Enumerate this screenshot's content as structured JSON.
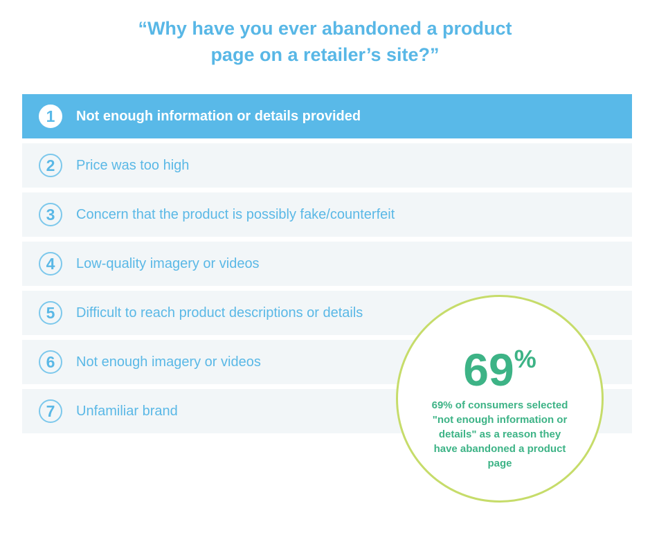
{
  "title": {
    "line1": "“Why have you ever abandoned a product",
    "line2": "page on a retailer’s site?”"
  },
  "chart_data": {
    "type": "table",
    "highlighted_rank": 1,
    "items": [
      {
        "rank": "1",
        "label": "Not enough information or details provided"
      },
      {
        "rank": "2",
        "label": "Price was too high"
      },
      {
        "rank": "3",
        "label": "Concern that the product is possibly fake/counterfeit"
      },
      {
        "rank": "4",
        "label": "Low-quality imagery or videos"
      },
      {
        "rank": "5",
        "label": "Difficult to reach product descriptions or details"
      },
      {
        "rank": "6",
        "label": "Not enough imagery or videos"
      },
      {
        "rank": "7",
        "label": "Unfamiliar brand"
      }
    ],
    "callout": {
      "value": "69",
      "unit": "%",
      "text": "69% of consumers selected \"not enough information or details\" as a reason they have abandoned a product page"
    }
  },
  "colors": {
    "accent_blue": "#59b9e8",
    "row_background": "#f2f6f8",
    "callout_green": "#3db386",
    "circle_border": "#c6dc6a"
  }
}
